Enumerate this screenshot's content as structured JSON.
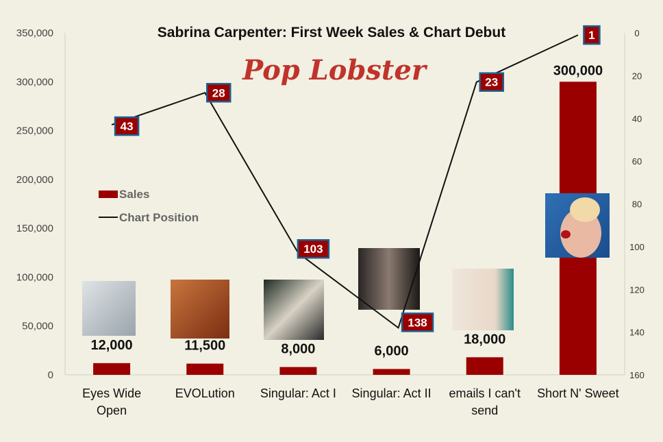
{
  "chart_data": {
    "type": "bar+line",
    "title": "Sabrina Carpenter: First Week Sales & Chart Debut",
    "logo_text": "Pop Lobster",
    "categories": [
      [
        "Eyes Wide",
        "Open"
      ],
      [
        "EVOLution"
      ],
      [
        "Singular: Act I"
      ],
      [
        "Singular: Act II"
      ],
      [
        "emails I can't",
        "send"
      ],
      [
        "Short N' Sweet"
      ]
    ],
    "series": [
      {
        "name": "Sales",
        "kind": "bar",
        "axis": "left",
        "color": "#9b0000",
        "values": [
          12000,
          11500,
          8000,
          6000,
          18000,
          300000
        ],
        "labels": [
          "12,000",
          "11,500",
          "8,000",
          "6,000",
          "18,000",
          "300,000"
        ]
      },
      {
        "name": "Chart Position",
        "kind": "line",
        "axis": "right",
        "color": "#111111",
        "values": [
          43,
          28,
          103,
          138,
          23,
          1
        ],
        "labels": [
          "43",
          "28",
          "103",
          "138",
          "23",
          "1"
        ]
      }
    ],
    "left_axis": {
      "min": 0,
      "max": 350000,
      "ticks": [
        "0",
        "50,000",
        "100,000",
        "150,000",
        "200,000",
        "250,000",
        "300,000",
        "350,000"
      ]
    },
    "right_axis": {
      "min": 0,
      "max": 160,
      "reversed": true,
      "ticks": [
        "0",
        "20",
        "40",
        "60",
        "80",
        "100",
        "120",
        "140",
        "160"
      ]
    },
    "legend_position": "left-middle",
    "grid": false,
    "album_art": [
      "Eyes Wide Open cover",
      "EVOLution cover",
      "Singular: Act I cover",
      "Singular: Act II cover",
      "emails I can't send cover",
      "Short N' Sweet cover"
    ]
  }
}
